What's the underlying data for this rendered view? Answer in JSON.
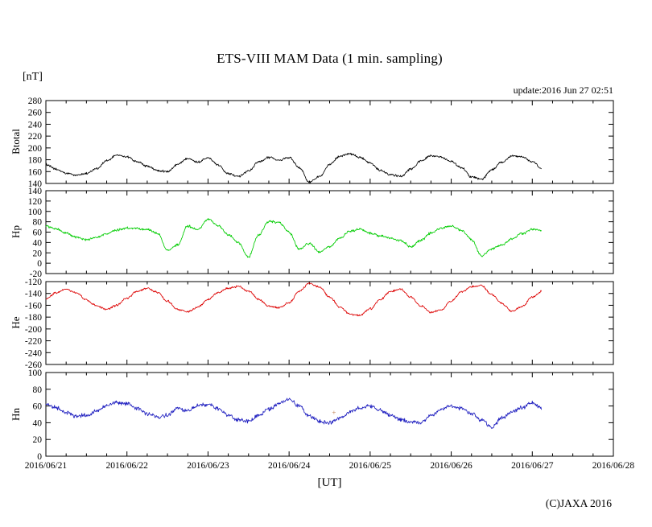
{
  "page": {
    "title": "ETS-VIII MAM Data (1 min. sampling)",
    "unit_label": "[nT]",
    "update_label": "update:2016 Jun 27 02:51",
    "xaxis_label": "[UT]",
    "copyright": "(C)JAXA 2016"
  },
  "chart_data": {
    "type": "line",
    "title": "ETS-VIII MAM Data (1 min. sampling)",
    "xlabel": "[UT]",
    "unit": "[nT]",
    "x_range_hours": [
      0,
      168
    ],
    "x_tick_labels": [
      "2016/06/21",
      "2016/06/22",
      "2016/06/23",
      "2016/06/24",
      "2016/06/25",
      "2016/06/26",
      "2016/06/27",
      "2016/06/28"
    ],
    "x_major_tick_hours": 24,
    "x_minor_tick_hours": 6,
    "data_end_hour": 146.85,
    "sample_step_hours": 3,
    "grid": false,
    "legend": "none",
    "panels": [
      {
        "name": "Btotal",
        "color": "#000000",
        "ylim": [
          140,
          280
        ],
        "ytick_step": 20,
        "yticks": [
          280,
          260,
          240,
          220,
          200,
          180,
          160,
          140
        ],
        "noise_amp": 2.2,
        "values": [
          172,
          164,
          157,
          154,
          157,
          165,
          178,
          188,
          185,
          177,
          169,
          162,
          160,
          172,
          183,
          176,
          184,
          171,
          157,
          152,
          161,
          176,
          184,
          179,
          184,
          167,
          142,
          152,
          172,
          186,
          190,
          184,
          174,
          162,
          155,
          152,
          164,
          178,
          187,
          184,
          177,
          167,
          151,
          147,
          163,
          176,
          186,
          185,
          177,
          164
        ]
      },
      {
        "name": "Hp",
        "color": "#00cc00",
        "ylim": [
          -20,
          140
        ],
        "ytick_step": 20,
        "yticks": [
          140,
          120,
          100,
          80,
          60,
          40,
          20,
          0,
          -20
        ],
        "noise_amp": 2.8,
        "values": [
          72,
          66,
          58,
          50,
          45,
          49,
          57,
          64,
          68,
          67,
          65,
          58,
          25,
          35,
          72,
          65,
          85,
          72,
          55,
          40,
          12,
          55,
          80,
          79,
          60,
          27,
          38,
          22,
          32,
          48,
          62,
          66,
          58,
          53,
          48,
          44,
          32,
          44,
          58,
          68,
          72,
          64,
          45,
          14,
          28,
          35,
          47,
          57,
          65,
          62
        ]
      },
      {
        "name": "He",
        "color": "#dd0000",
        "ylim": [
          -260,
          -120
        ],
        "ytick_step": 20,
        "yticks": [
          -120,
          -140,
          -160,
          -180,
          -200,
          -220,
          -240,
          -260
        ],
        "noise_amp": 2.0,
        "values": [
          -150,
          -139,
          -133,
          -139,
          -151,
          -161,
          -167,
          -160,
          -148,
          -137,
          -131,
          -138,
          -153,
          -167,
          -171,
          -163,
          -150,
          -139,
          -131,
          -128,
          -136,
          -150,
          -161,
          -164,
          -156,
          -136,
          -123,
          -129,
          -146,
          -163,
          -175,
          -177,
          -166,
          -150,
          -137,
          -133,
          -146,
          -161,
          -172,
          -168,
          -153,
          -137,
          -128,
          -127,
          -142,
          -157,
          -170,
          -162,
          -146,
          -136
        ]
      },
      {
        "name": "Hn",
        "color": "#2020c0",
        "ylim": [
          0,
          100
        ],
        "ytick_step": 20,
        "yticks": [
          100,
          80,
          60,
          40,
          20,
          0
        ],
        "noise_amp": 2.8,
        "values": [
          62,
          58,
          52,
          48,
          49,
          54,
          60,
          64,
          63,
          57,
          51,
          47,
          49,
          57,
          54,
          60,
          62,
          57,
          49,
          43,
          42,
          49,
          56,
          63,
          68,
          60,
          48,
          42,
          40,
          45,
          53,
          58,
          60,
          55,
          49,
          44,
          41,
          40,
          49,
          56,
          60,
          57,
          51,
          43,
          34,
          46,
          53,
          58,
          64,
          57
        ]
      }
    ],
    "artifact_marker": {
      "panel_index": 3,
      "hour": 85.3,
      "value": 52,
      "symbol": "+",
      "color": "#bb7744"
    }
  }
}
